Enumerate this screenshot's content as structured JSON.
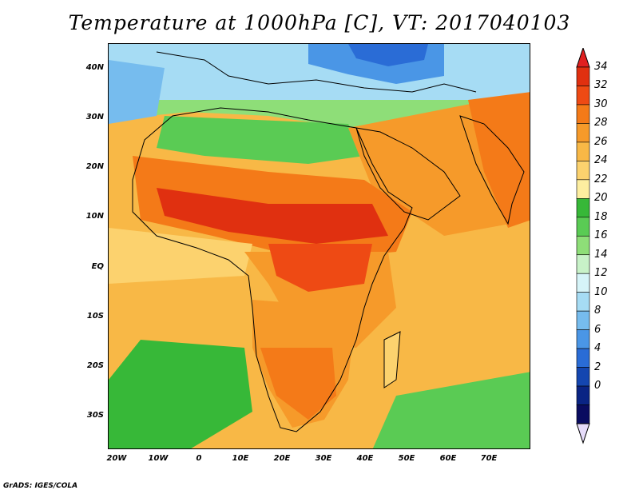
{
  "title": "Temperature at 1000hPa [C], VT: 2017040103",
  "credit": "GrADS: IGES/COLA",
  "map": {
    "lon_range": [
      -22,
      80
    ],
    "lat_range": [
      -37,
      45
    ],
    "lat_ticks": [
      "40N",
      "30N",
      "20N",
      "10N",
      "EQ",
      "10S",
      "20S",
      "30S"
    ],
    "lon_ticks": [
      "20W",
      "10W",
      "0",
      "10E",
      "20E",
      "30E",
      "40E",
      "50E",
      "60E",
      "70E"
    ]
  },
  "colorbar": {
    "labels": [
      "34",
      "32",
      "30",
      "28",
      "26",
      "24",
      "22",
      "20",
      "18",
      "16",
      "14",
      "12",
      "10",
      "8",
      "6",
      "4",
      "2",
      "0"
    ],
    "colors": [
      "#e03010",
      "#ee4a14",
      "#f47a18",
      "#f69a2a",
      "#f8b846",
      "#fcd26e",
      "#fdeea0",
      "#37b838",
      "#5acb54",
      "#8ede78",
      "#c8f2c8",
      "#d6f4f8",
      "#a6dcf4",
      "#76bcee",
      "#4a96e6",
      "#2a6cd6",
      "#1446b0",
      "#0a2484",
      "#0a0c60"
    ],
    "overflow_top": "#e02020",
    "underflow_bottom": "#e6dcfa"
  }
}
